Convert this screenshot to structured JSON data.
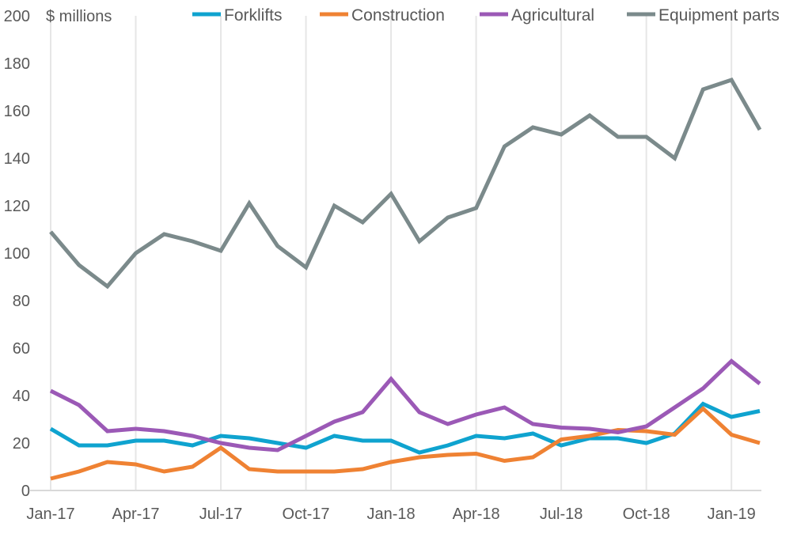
{
  "chart_data": {
    "type": "line",
    "title": "",
    "ylabel": "$ millions",
    "xlabel": "",
    "ylim": [
      0,
      200
    ],
    "yticks": [
      0,
      20,
      40,
      60,
      80,
      100,
      120,
      140,
      160,
      180,
      200
    ],
    "grid": "vertical at labeled months",
    "legend_position": "top",
    "x": [
      "Jan-17",
      "Feb-17",
      "Mar-17",
      "Apr-17",
      "May-17",
      "Jun-17",
      "Jul-17",
      "Aug-17",
      "Sep-17",
      "Oct-17",
      "Nov-17",
      "Dec-17",
      "Jan-18",
      "Feb-18",
      "Mar-18",
      "Apr-18",
      "May-18",
      "Jun-18",
      "Jul-18",
      "Aug-18",
      "Sep-18",
      "Oct-18",
      "Nov-18",
      "Dec-18",
      "Jan-19",
      "Feb-19"
    ],
    "xtick_labels": [
      "Jan-17",
      "Apr-17",
      "Jul-17",
      "Oct-17",
      "Jan-18",
      "Apr-18",
      "Jul-18",
      "Oct-18",
      "Jan-19"
    ],
    "series": [
      {
        "name": "Forklifts",
        "color": "#0fa3cf",
        "values": [
          26,
          19,
          19,
          21,
          21,
          19,
          23,
          22,
          20,
          18,
          23,
          21,
          21,
          16,
          19,
          23,
          22,
          24,
          19,
          22,
          22,
          20,
          24,
          36.5,
          31,
          33.5
        ]
      },
      {
        "name": "Construction",
        "color": "#ef8233",
        "values": [
          5,
          8,
          12,
          11,
          8,
          10,
          18,
          9,
          8,
          8,
          8,
          9,
          12,
          14,
          15,
          15.5,
          12.5,
          14,
          21.5,
          23,
          25.5,
          25,
          23.5,
          34.5,
          23.5,
          20
        ]
      },
      {
        "name": "Agricultural",
        "color": "#9b59b6",
        "values": [
          42,
          36,
          25,
          26,
          25,
          23,
          20,
          18,
          17,
          23,
          29,
          33,
          47,
          33,
          28,
          32,
          35,
          28,
          26.5,
          26,
          24.5,
          27,
          35,
          43,
          54.5,
          45
        ]
      },
      {
        "name": "Equipment parts",
        "color": "#7b8a8b",
        "values": [
          109,
          95,
          86,
          100,
          108,
          105,
          101,
          121,
          103,
          94,
          120,
          113,
          125,
          105,
          115,
          119,
          145,
          153,
          150,
          158,
          149,
          149,
          140,
          169,
          173,
          152
        ]
      }
    ]
  }
}
